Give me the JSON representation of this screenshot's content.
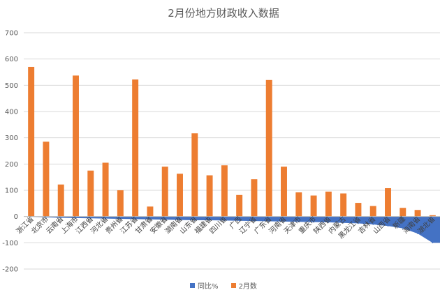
{
  "chart_data": {
    "type": "bar",
    "title": "2月份地方财政收入数据",
    "ylim": [
      -200,
      700
    ],
    "yticks": [
      -200,
      -100,
      0,
      100,
      200,
      300,
      400,
      500,
      600,
      700
    ],
    "grid": true,
    "legend_position": "bottom",
    "categories": [
      "浙江省",
      "北京市",
      "云南省",
      "上海市",
      "江西省",
      "河北省",
      "贵州省",
      "江苏省",
      "甘肃省",
      "安徽省",
      "湖南省",
      "山东省",
      "福建省",
      "四川省",
      "广西",
      "辽宁省",
      "广东省",
      "河南省",
      "天津市",
      "重庆市",
      "陕西省",
      "内蒙古",
      "黑龙江省",
      "吉林省",
      "山西省",
      "新疆",
      "海南省",
      "湖北省"
    ],
    "series": [
      {
        "name": "同比%",
        "type": "area",
        "color": "#4472C4",
        "values": [
          -1,
          -3,
          -5,
          -6,
          -7,
          -8,
          -9,
          -10,
          -11,
          -12,
          -13,
          -14,
          -14,
          -15,
          -16,
          -17,
          -18,
          -19,
          -20,
          -21,
          -22,
          -24,
          -26,
          -30,
          -36,
          -45,
          -65,
          -100
        ]
      },
      {
        "name": "2月数",
        "type": "bar",
        "color": "#ED7D31",
        "values": [
          570,
          285,
          122,
          537,
          175,
          205,
          100,
          522,
          38,
          190,
          163,
          317,
          157,
          195,
          82,
          142,
          520,
          190,
          92,
          80,
          95,
          88,
          52,
          40,
          108,
          33,
          25,
          5
        ]
      }
    ]
  }
}
